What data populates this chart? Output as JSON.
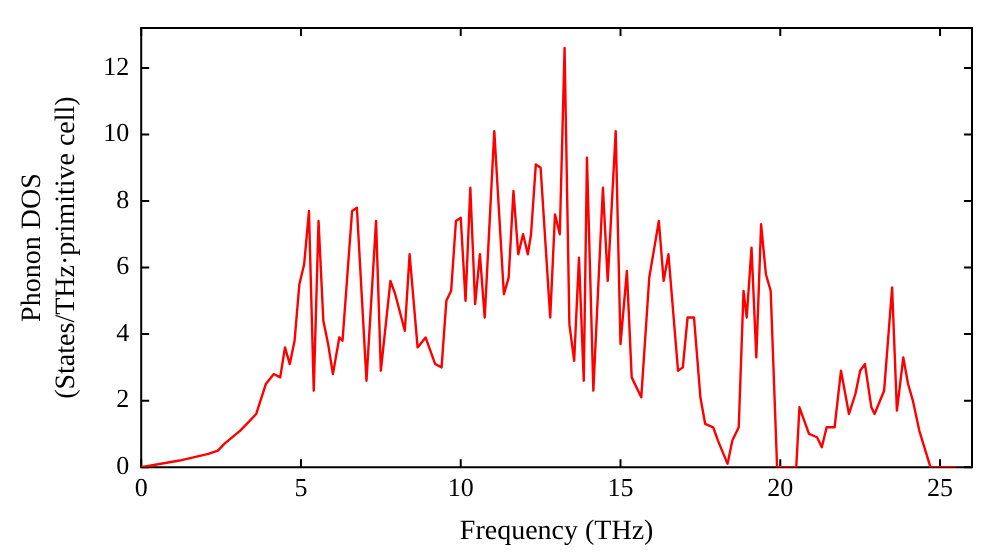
{
  "chart_data": {
    "type": "line",
    "xlabel": "Frequency (THz)",
    "ylabel": "Phonon DOS\n(States/THz·primitive cell)",
    "xlim": [
      0,
      26
    ],
    "ylim": [
      0,
      13.2
    ],
    "xticks": [
      0,
      5,
      10,
      15,
      20,
      25
    ],
    "yticks": [
      0,
      2,
      4,
      6,
      8,
      10,
      12
    ],
    "grid": false,
    "legend": false,
    "marker": "none",
    "line_style": "solid",
    "series": [
      {
        "color": "#ff0000",
        "x": [
          0,
          1.2,
          2.1,
          2.4,
          2.6,
          3.1,
          3.6,
          3.9,
          4.15,
          4.35,
          4.5,
          4.65,
          4.8,
          4.95,
          5.1,
          5.25,
          5.4,
          5.55,
          5.7,
          5.85,
          6.0,
          6.2,
          6.3,
          6.6,
          6.75,
          7.05,
          7.35,
          7.5,
          7.8,
          7.95,
          8.25,
          8.4,
          8.65,
          8.9,
          9.2,
          9.4,
          9.55,
          9.7,
          9.85,
          10.0,
          10.15,
          10.3,
          10.45,
          10.6,
          10.75,
          11.05,
          11.35,
          11.5,
          11.65,
          11.8,
          11.95,
          12.1,
          12.2,
          12.35,
          12.5,
          12.8,
          12.95,
          13.1,
          13.25,
          13.4,
          13.55,
          13.7,
          13.85,
          13.95,
          14.15,
          14.45,
          14.6,
          14.85,
          15.0,
          15.2,
          15.35,
          15.65,
          15.9,
          16.2,
          16.35,
          16.5,
          16.8,
          16.95,
          17.1,
          17.3,
          17.5,
          17.65,
          17.9,
          18.05,
          18.35,
          18.5,
          18.7,
          18.85,
          18.95,
          19.1,
          19.25,
          19.4,
          19.55,
          19.7,
          19.9,
          20.5,
          20.6,
          20.9,
          21.15,
          21.3,
          21.45,
          21.7,
          21.9,
          22.15,
          22.35,
          22.5,
          22.65,
          22.85,
          22.95,
          23.25,
          23.5,
          23.65,
          23.85,
          24.0,
          24.15,
          24.35,
          24.7,
          25.5
        ],
        "values": [
          0,
          0.2,
          0.4,
          0.5,
          0.7,
          1.1,
          1.6,
          2.5,
          2.8,
          2.7,
          3.6,
          3.1,
          3.8,
          5.5,
          6.1,
          7.7,
          2.3,
          7.4,
          4.4,
          3.7,
          2.8,
          3.9,
          3.8,
          7.7,
          7.8,
          2.6,
          7.4,
          2.9,
          5.6,
          5.2,
          4.1,
          6.4,
          3.6,
          3.9,
          3.1,
          3.0,
          5.0,
          5.3,
          7.4,
          7.5,
          5.0,
          8.4,
          4.9,
          6.4,
          4.5,
          10.1,
          5.2,
          5.7,
          8.3,
          6.4,
          7.0,
          6.4,
          7.0,
          9.1,
          9.0,
          4.5,
          7.6,
          7.0,
          12.6,
          4.3,
          3.2,
          6.3,
          2.6,
          9.3,
          2.3,
          8.4,
          5.6,
          10.1,
          3.7,
          5.9,
          2.7,
          2.1,
          5.7,
          7.4,
          5.6,
          6.4,
          2.9,
          3.0,
          4.5,
          4.5,
          2.1,
          1.3,
          1.2,
          0.8,
          0.1,
          0.8,
          1.2,
          5.3,
          4.5,
          6.6,
          3.3,
          7.3,
          5.8,
          5.3,
          0,
          0,
          1.8,
          1.0,
          0.9,
          0.6,
          1.2,
          1.2,
          2.9,
          1.6,
          2.2,
          2.9,
          3.1,
          1.8,
          1.6,
          2.3,
          5.4,
          1.7,
          3.3,
          2.5,
          2.0,
          1.1,
          0,
          0
        ]
      }
    ]
  }
}
